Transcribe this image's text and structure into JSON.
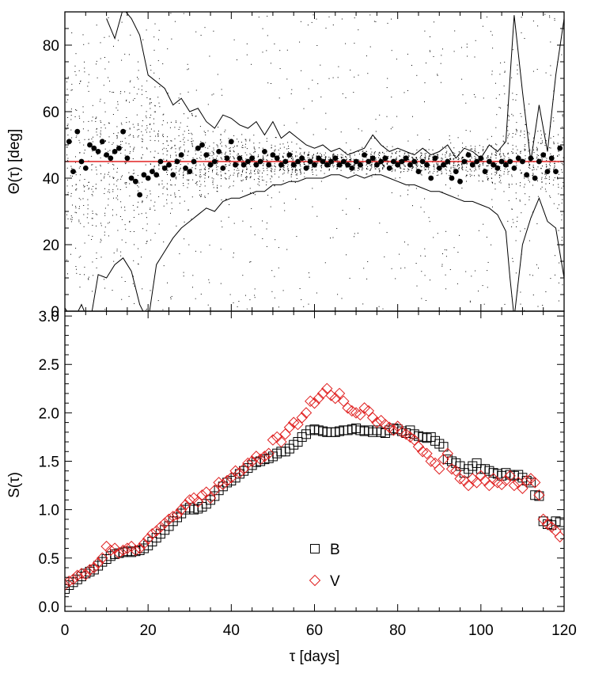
{
  "chart_data": [
    {
      "type": "scatter",
      "panel": "top",
      "title": "",
      "xlabel": "",
      "ylabel": "Θ(τ) [deg]",
      "xlim": [
        0,
        120
      ],
      "ylim": [
        0,
        90
      ],
      "x_ticks": [],
      "y_ticks": [
        0,
        20,
        40,
        60,
        80
      ],
      "y_tick_labels": [
        "0",
        "20",
        "40",
        "60",
        "80"
      ],
      "reference_line": {
        "y": 45,
        "color": "#e02020"
      },
      "envelope_upper": {
        "x": [
          10,
          12,
          14,
          16,
          18,
          20,
          22,
          24,
          26,
          28,
          30,
          32,
          34,
          36,
          38,
          40,
          42,
          44,
          46,
          48,
          50,
          52,
          54,
          56,
          58,
          60,
          62,
          64,
          66,
          68,
          70,
          72,
          74,
          76,
          78,
          80,
          82,
          84,
          86,
          88,
          90,
          92,
          94,
          96,
          98,
          100,
          102,
          104,
          106,
          107,
          108,
          110,
          112,
          114,
          116,
          118,
          120
        ],
        "values": [
          88,
          82,
          91,
          88,
          83,
          71,
          69,
          67,
          62,
          64,
          60,
          61,
          57,
          55,
          59,
          58,
          56,
          55,
          57,
          53,
          57,
          52,
          54,
          52,
          50,
          49,
          50,
          48,
          49,
          47,
          48,
          49,
          53,
          50,
          48,
          49,
          48,
          47,
          49,
          47,
          48,
          50,
          46,
          49,
          48,
          46,
          50,
          48,
          51,
          70,
          89,
          66,
          45,
          62,
          48,
          71,
          88
        ]
      },
      "envelope_lower": {
        "x": [
          0,
          2,
          4,
          6,
          8,
          10,
          12,
          14,
          16,
          18,
          20,
          22,
          24,
          26,
          28,
          30,
          32,
          34,
          36,
          38,
          40,
          42,
          44,
          46,
          48,
          50,
          52,
          54,
          56,
          58,
          60,
          62,
          64,
          66,
          68,
          70,
          72,
          74,
          76,
          78,
          80,
          82,
          84,
          86,
          88,
          90,
          92,
          94,
          96,
          98,
          100,
          102,
          104,
          106,
          107,
          108,
          110,
          112,
          114,
          116,
          118,
          120
        ],
        "values": [
          1,
          -3,
          2,
          -4,
          11,
          10,
          14,
          16,
          12,
          2,
          -3,
          14,
          18,
          22,
          25,
          27,
          29,
          31,
          30,
          33,
          34,
          34,
          35,
          36,
          36,
          38,
          38,
          39,
          39,
          40,
          40,
          40,
          41,
          41,
          40,
          41,
          40,
          41,
          41,
          40,
          39,
          38,
          38,
          37,
          36,
          36,
          35,
          34,
          33,
          33,
          32,
          31,
          29,
          24,
          10,
          -2,
          20,
          28,
          34,
          27,
          25,
          10
        ]
      },
      "mean_points": {
        "x": [
          1,
          2,
          3,
          4,
          5,
          6,
          7,
          8,
          9,
          10,
          11,
          12,
          13,
          14,
          15,
          16,
          17,
          18,
          19,
          20,
          21,
          22,
          23,
          24,
          25,
          26,
          27,
          28,
          29,
          30,
          31,
          32,
          33,
          34,
          35,
          36,
          37,
          38,
          39,
          40,
          41,
          42,
          43,
          44,
          45,
          46,
          47,
          48,
          49,
          50,
          51,
          52,
          53,
          54,
          55,
          56,
          57,
          58,
          59,
          60,
          61,
          62,
          63,
          64,
          65,
          66,
          67,
          68,
          69,
          70,
          71,
          72,
          73,
          74,
          75,
          76,
          77,
          78,
          79,
          80,
          81,
          82,
          83,
          84,
          85,
          86,
          87,
          88,
          89,
          90,
          91,
          92,
          93,
          94,
          95,
          96,
          97,
          98,
          99,
          100,
          101,
          102,
          103,
          104,
          105,
          106,
          107,
          108,
          109,
          110,
          111,
          112,
          113,
          114,
          115,
          116,
          117,
          118,
          119
        ],
        "values": [
          51,
          42,
          54,
          45,
          43,
          50,
          49,
          48,
          51,
          47,
          46,
          48,
          49,
          54,
          46,
          40,
          39,
          35,
          41,
          40,
          42,
          41,
          45,
          43,
          44,
          41,
          45,
          47,
          43,
          42,
          45,
          49,
          50,
          47,
          44,
          45,
          48,
          43,
          46,
          51,
          44,
          46,
          44,
          45,
          46,
          44,
          45,
          48,
          44,
          47,
          46,
          44,
          45,
          47,
          44,
          45,
          46,
          43,
          45,
          44,
          46,
          45,
          44,
          45,
          46,
          44,
          45,
          44,
          43,
          45,
          44,
          47,
          45,
          46,
          44,
          45,
          46,
          43,
          45,
          44,
          45,
          46,
          44,
          45,
          42,
          45,
          44,
          40,
          46,
          43,
          44,
          45,
          40,
          42,
          39,
          45,
          47,
          44,
          45,
          46,
          42,
          45,
          44,
          43,
          45,
          44,
          45,
          43,
          46,
          45,
          41,
          46,
          40,
          45,
          47,
          42,
          46,
          42,
          49
        ]
      }
    },
    {
      "type": "scatter",
      "panel": "bottom",
      "title": "",
      "xlabel": "τ [days]",
      "ylabel": "S(τ)",
      "xlim": [
        0,
        120
      ],
      "ylim": [
        -0.05,
        3.05
      ],
      "x_ticks": [
        0,
        20,
        40,
        60,
        80,
        100,
        120
      ],
      "x_tick_labels": [
        "0",
        "20",
        "40",
        "60",
        "80",
        "100",
        "120"
      ],
      "y_ticks": [
        0.0,
        0.5,
        1.0,
        1.5,
        2.0,
        2.5,
        3.0
      ],
      "y_tick_labels": [
        "0.0",
        "0.5",
        "1.0",
        "1.5",
        "2.0",
        "2.5",
        "3.0"
      ],
      "legend": {
        "placement": "center-bottom",
        "entries": [
          "B",
          "V"
        ]
      },
      "series": [
        {
          "name": "B",
          "marker": "square",
          "color": "#000000",
          "x": [
            0,
            1,
            2,
            3,
            4,
            5,
            6,
            7,
            8,
            9,
            10,
            11,
            12,
            13,
            14,
            15,
            16,
            17,
            18,
            19,
            20,
            21,
            22,
            23,
            24,
            25,
            26,
            27,
            28,
            29,
            30,
            31,
            32,
            33,
            34,
            35,
            36,
            37,
            38,
            39,
            40,
            41,
            42,
            43,
            44,
            45,
            46,
            47,
            48,
            49,
            50,
            51,
            52,
            53,
            54,
            55,
            56,
            57,
            58,
            59,
            60,
            61,
            62,
            63,
            64,
            65,
            66,
            67,
            68,
            69,
            70,
            71,
            72,
            73,
            74,
            75,
            76,
            77,
            78,
            79,
            80,
            81,
            82,
            83,
            84,
            85,
            86,
            87,
            88,
            89,
            90,
            91,
            92,
            93,
            94,
            95,
            96,
            97,
            98,
            99,
            100,
            101,
            102,
            103,
            104,
            105,
            106,
            107,
            108,
            109,
            110,
            111,
            112,
            113,
            114,
            115,
            116,
            117,
            118,
            119
          ],
          "values": [
            0.18,
            0.22,
            0.25,
            0.28,
            0.31,
            0.34,
            0.36,
            0.38,
            0.42,
            0.46,
            0.49,
            0.52,
            0.54,
            0.55,
            0.56,
            0.57,
            0.56,
            0.57,
            0.58,
            0.6,
            0.63,
            0.67,
            0.71,
            0.75,
            0.79,
            0.83,
            0.88,
            0.92,
            0.96,
            1.0,
            1.02,
            1.0,
            1.01,
            1.03,
            1.06,
            1.1,
            1.14,
            1.2,
            1.24,
            1.28,
            1.3,
            1.33,
            1.37,
            1.4,
            1.43,
            1.46,
            1.49,
            1.5,
            1.52,
            1.53,
            1.55,
            1.58,
            1.6,
            1.6,
            1.63,
            1.67,
            1.7,
            1.75,
            1.78,
            1.82,
            1.83,
            1.82,
            1.81,
            1.8,
            1.8,
            1.8,
            1.81,
            1.82,
            1.82,
            1.83,
            1.84,
            1.82,
            1.81,
            1.82,
            1.8,
            1.82,
            1.8,
            1.79,
            1.82,
            1.84,
            1.83,
            1.81,
            1.79,
            1.82,
            1.78,
            1.76,
            1.75,
            1.74,
            1.75,
            1.71,
            1.68,
            1.65,
            1.52,
            1.5,
            1.48,
            1.45,
            1.38,
            1.42,
            1.45,
            1.48,
            1.42,
            1.42,
            1.4,
            1.38,
            1.37,
            1.35,
            1.38,
            1.36,
            1.35,
            1.36,
            1.33,
            1.3,
            1.28,
            1.15,
            1.14,
            0.88,
            0.85,
            0.84,
            0.88,
            0.87
          ]
        },
        {
          "name": "V",
          "marker": "diamond",
          "color": "#e02020",
          "x": [
            0,
            1,
            2,
            3,
            4,
            5,
            6,
            7,
            8,
            9,
            10,
            11,
            12,
            13,
            14,
            15,
            16,
            17,
            18,
            19,
            20,
            21,
            22,
            23,
            24,
            25,
            26,
            27,
            28,
            29,
            30,
            31,
            32,
            33,
            34,
            35,
            36,
            37,
            38,
            39,
            40,
            41,
            42,
            43,
            44,
            45,
            46,
            47,
            48,
            49,
            50,
            51,
            52,
            53,
            54,
            55,
            56,
            57,
            58,
            59,
            60,
            61,
            62,
            63,
            64,
            65,
            66,
            67,
            68,
            69,
            70,
            71,
            72,
            73,
            74,
            75,
            76,
            77,
            78,
            79,
            80,
            81,
            82,
            83,
            84,
            85,
            86,
            87,
            88,
            89,
            90,
            91,
            92,
            93,
            94,
            95,
            96,
            97,
            98,
            99,
            100,
            101,
            102,
            103,
            104,
            105,
            106,
            107,
            108,
            109,
            110,
            111,
            112,
            113,
            114,
            115,
            116,
            117,
            118,
            119
          ],
          "values": [
            0.22,
            0.26,
            0.28,
            0.32,
            0.34,
            0.33,
            0.38,
            0.4,
            0.45,
            0.5,
            0.62,
            0.58,
            0.6,
            0.55,
            0.58,
            0.6,
            0.62,
            0.58,
            0.6,
            0.65,
            0.7,
            0.75,
            0.78,
            0.82,
            0.86,
            0.9,
            0.93,
            0.95,
            1.0,
            1.05,
            1.1,
            1.12,
            1.08,
            1.15,
            1.18,
            1.12,
            1.2,
            1.28,
            1.26,
            1.3,
            1.33,
            1.4,
            1.38,
            1.42,
            1.48,
            1.5,
            1.55,
            1.52,
            1.55,
            1.58,
            1.72,
            1.75,
            1.7,
            1.78,
            1.85,
            1.9,
            1.88,
            1.95,
            2.0,
            2.12,
            2.1,
            2.15,
            2.2,
            2.25,
            2.18,
            2.15,
            2.2,
            2.12,
            2.05,
            2.02,
            2.0,
            1.98,
            2.05,
            2.02,
            1.95,
            1.9,
            1.92,
            1.88,
            1.85,
            1.82,
            1.86,
            1.8,
            1.78,
            1.75,
            1.72,
            1.65,
            1.6,
            1.58,
            1.5,
            1.48,
            1.42,
            1.52,
            1.58,
            1.42,
            1.4,
            1.32,
            1.3,
            1.25,
            1.32,
            1.28,
            1.35,
            1.3,
            1.25,
            1.32,
            1.28,
            1.26,
            1.3,
            1.35,
            1.25,
            1.28,
            1.22,
            1.3,
            1.32,
            1.28,
            1.15,
            0.9,
            0.85,
            0.82,
            0.78,
            0.72
          ]
        }
      ]
    }
  ]
}
